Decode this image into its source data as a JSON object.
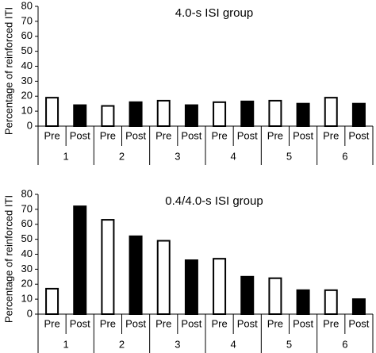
{
  "chart_data": [
    {
      "type": "bar",
      "title": "4.0-s ISI group",
      "ylabel": "Percentage of reinforced ITI",
      "categories": [
        "1",
        "2",
        "3",
        "4",
        "5",
        "6"
      ],
      "subcategories": [
        "Pre",
        "Post"
      ],
      "series": [
        {
          "color": "#ffffff",
          "values": [
            19,
            13.5,
            17,
            16,
            17,
            19
          ]
        },
        {
          "color": "#000000",
          "values": [
            14,
            16,
            14,
            16.5,
            15,
            15
          ]
        }
      ],
      "ylim": [
        0,
        80
      ],
      "yticks": [
        0,
        10,
        20,
        30,
        40,
        50,
        60,
        70,
        80
      ]
    },
    {
      "type": "bar",
      "title": "0.4/4.0-s ISI group",
      "ylabel": "Percentage of reinforced ITI",
      "categories": [
        "1",
        "2",
        "3",
        "4",
        "5",
        "6"
      ],
      "subcategories": [
        "Pre",
        "Post"
      ],
      "series": [
        {
          "color": "#ffffff",
          "values": [
            17,
            63,
            49,
            37,
            24,
            16
          ]
        },
        {
          "color": "#000000",
          "values": [
            72,
            52,
            36,
            25,
            16,
            10
          ]
        }
      ],
      "ylim": [
        0,
        80
      ],
      "yticks": [
        0,
        10,
        20,
        30,
        40,
        50,
        60,
        70,
        80
      ]
    }
  ]
}
